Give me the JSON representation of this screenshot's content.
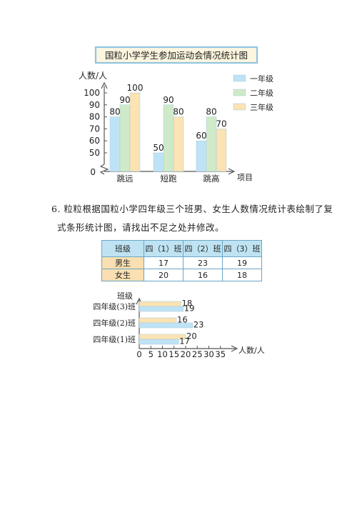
{
  "question": {
    "line1": "6. 粒粒根据国粒小学四年级三个班男、女生人数情况统计表绘制了复",
    "line2": "式条形统计图，请找出不足之处并修改。"
  },
  "table": {
    "corner": "班级",
    "columns": [
      "四（1）班",
      "四（2）班",
      "四（3）班"
    ],
    "rows": [
      {
        "label": "男生",
        "values": [
          "17",
          "23",
          "19"
        ]
      },
      {
        "label": "女生",
        "values": [
          "20",
          "16",
          "18"
        ]
      }
    ]
  },
  "chart_data": [
    {
      "type": "bar",
      "title": "国粒小学学生参加运动会情况统计图",
      "ylabel": "人数/人",
      "xlabel": "项目",
      "categories": [
        "跳远",
        "短跑",
        "跳高"
      ],
      "series": [
        {
          "name": "一年级",
          "values": [
            80,
            50,
            60
          ],
          "color": "#bfe3f6"
        },
        {
          "name": "二年级",
          "values": [
            90,
            90,
            80
          ],
          "color": "#cfeac9"
        },
        {
          "name": "三年级",
          "values": [
            100,
            80,
            70
          ],
          "color": "#fbe3b3"
        }
      ],
      "yticks": [
        "0",
        "50",
        "60",
        "70",
        "80",
        "90",
        "100"
      ],
      "ylim": [
        40,
        100
      ],
      "axis_break": true,
      "legend": "right"
    },
    {
      "type": "bar",
      "orientation": "horizontal",
      "title": "",
      "ylabel": "班级",
      "xlabel": "人数/人",
      "categories": [
        "四年级(1)班",
        "四年级(2)班",
        "四年级(3)班"
      ],
      "series": [
        {
          "values": [
            20,
            16,
            18
          ],
          "color": "#fbe3b3"
        },
        {
          "values": [
            17,
            23,
            19
          ],
          "color": "#bfe3f6"
        }
      ],
      "xticks": [
        0,
        5,
        10,
        15,
        20,
        25,
        30,
        35
      ],
      "xlim": [
        0,
        35
      ]
    }
  ]
}
